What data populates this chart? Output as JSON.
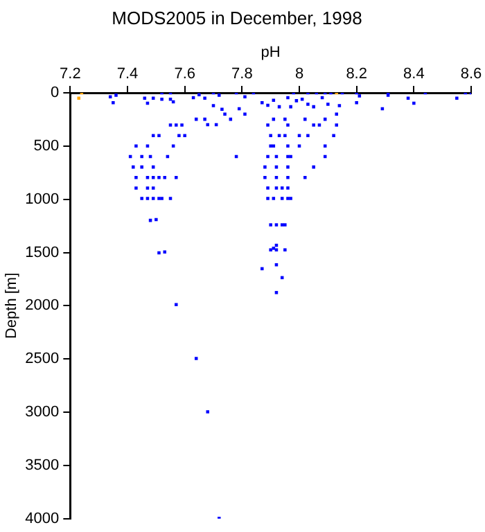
{
  "chart_data": {
    "type": "scatter",
    "title": "MODS2005 in December, 1998",
    "xlabel": "pH",
    "ylabel": "Depth [m]",
    "xlim": [
      7.2,
      8.6
    ],
    "xticks": [
      7.2,
      7.4,
      7.6,
      7.8,
      8,
      8.2,
      8.4,
      8.6
    ],
    "ylim": [
      4000,
      0
    ],
    "yticks": [
      0,
      500,
      1000,
      1500,
      2000,
      2500,
      3000,
      3500,
      4000
    ],
    "grid": false,
    "legend": false,
    "marker": "square",
    "series": [
      {
        "color": "#0000ff",
        "x": [
          7.34,
          7.35,
          7.36,
          7.46,
          7.49,
          7.47,
          7.52,
          7.52,
          7.55,
          7.55,
          7.56,
          7.63,
          7.65,
          7.67,
          7.7,
          7.72,
          7.7,
          7.73,
          7.74,
          7.76,
          7.64,
          7.67,
          7.68,
          7.71,
          7.55,
          7.57,
          7.59,
          7.49,
          7.51,
          7.58,
          7.6,
          7.43,
          7.47,
          7.56,
          7.41,
          7.45,
          7.48,
          7.54,
          7.78,
          7.42,
          7.45,
          7.49,
          7.43,
          7.47,
          7.49,
          7.51,
          7.53,
          7.57,
          7.43,
          7.47,
          7.49,
          7.45,
          7.47,
          7.49,
          7.51,
          7.52,
          7.55,
          7.48,
          7.5,
          7.51,
          7.53,
          7.57,
          7.64,
          7.68,
          7.72,
          7.87,
          7.92,
          7.94,
          7.92,
          7.78,
          7.84,
          7.98,
          8.03,
          8.06,
          8.09,
          8.11,
          8.15,
          8.2,
          8.31,
          8.44,
          8.58,
          8.6,
          8.31,
          8.38,
          8.4,
          8.55,
          8.29,
          8.2,
          8.21,
          7.81,
          7.79,
          7.81,
          7.87,
          7.89,
          7.91,
          7.93,
          7.96,
          7.97,
          7.99,
          8.01,
          8.03,
          8.05,
          8.08,
          8.1,
          8.14,
          8.13,
          8.02,
          8.09,
          8.13,
          8.05,
          8.07,
          7.89,
          7.96,
          7.91,
          7.95,
          7.9,
          7.93,
          7.95,
          8,
          8.03,
          8.12,
          7.9,
          7.91,
          7.96,
          8,
          8.09,
          7.89,
          7.92,
          7.96,
          7.97,
          8.09,
          7.88,
          7.92,
          7.96,
          8.05,
          7.88,
          7.92,
          7.96,
          8.02,
          7.89,
          7.92,
          7.94,
          7.96,
          7.89,
          7.91,
          7.94,
          7.96,
          7.97,
          7.9,
          7.92,
          7.94,
          7.95,
          7.92,
          7.9,
          7.92,
          7.95,
          7.91
        ],
        "values": [
          37,
          93,
          22,
          50,
          50,
          98,
          0,
          60,
          0,
          60,
          84,
          46,
          18,
          50,
          0,
          22,
          121,
          154,
          200,
          248,
          248,
          248,
          300,
          300,
          303,
          303,
          303,
          402,
          402,
          402,
          402,
          500,
          500,
          500,
          598,
          598,
          598,
          598,
          598,
          697,
          697,
          697,
          795,
          795,
          795,
          795,
          795,
          795,
          894,
          894,
          894,
          992,
          992,
          992,
          992,
          992,
          992,
          1198,
          1190,
          1503,
          1495,
          1989,
          2495,
          2996,
          3997,
          1652,
          1615,
          1736,
          1876,
          0,
          0,
          0,
          0,
          0,
          0,
          0,
          0,
          0,
          0,
          0,
          0,
          0,
          22,
          50,
          98,
          50,
          149,
          93,
          30,
          37,
          149,
          200,
          93,
          117,
          70,
          131,
          46,
          131,
          74,
          60,
          107,
          131,
          46,
          107,
          121,
          200,
          248,
          248,
          303,
          303,
          303,
          303,
          303,
          248,
          248,
          402,
          402,
          402,
          402,
          402,
          402,
          500,
          500,
          500,
          500,
          500,
          598,
          598,
          598,
          598,
          598,
          697,
          697,
          697,
          697,
          795,
          795,
          795,
          795,
          894,
          894,
          894,
          894,
          992,
          992,
          992,
          992,
          992,
          1240,
          1240,
          1240,
          1240,
          1432,
          1475,
          1475,
          1475,
          1460
        ]
      },
      {
        "color": "#ffa500",
        "x": [
          7.24,
          7.23,
          8.13
        ],
        "values": [
          0,
          50,
          0
        ]
      }
    ]
  }
}
